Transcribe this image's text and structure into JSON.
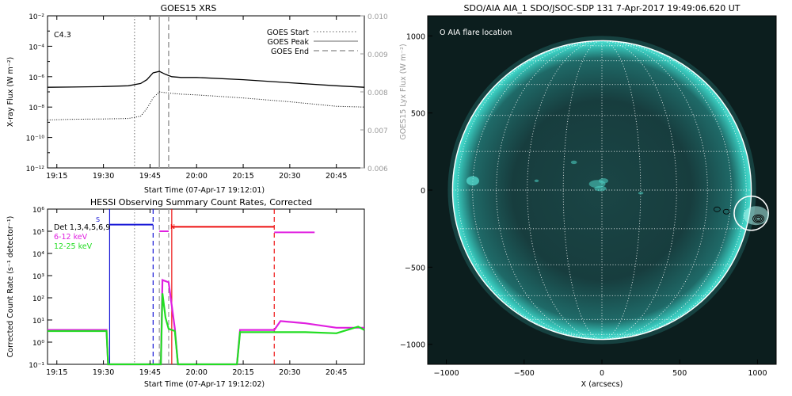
{
  "colors": {
    "axis": "#000000",
    "right_axis": "#9a9a9a",
    "goes_marker": "#9a9a9a",
    "hessi_blue": "#1515d6",
    "hessi_red": "#ee1010",
    "hessi_magenta": "#e020e0",
    "hessi_green": "#22dd22",
    "sun_teal": "#28b8ad",
    "sun_dark": "#0c1e1e"
  },
  "chart_data": [
    {
      "type": "line",
      "title": "GOES15 XRS",
      "xlabel": "Start Time (07-Apr-17 19:12:01)",
      "ylabel": "X-ray Flux (W m⁻²)",
      "ylabel_right": "GOES15 Lyx Flux (W m⁻²)",
      "x_ticks": [
        "19:15",
        "19:30",
        "19:45",
        "20:00",
        "20:15",
        "20:30",
        "20:45"
      ],
      "y_ticks": [
        "10⁻¹²",
        "10⁻¹⁰",
        "10⁻⁸",
        "10⁻⁶",
        "10⁻⁴",
        "10⁻²"
      ],
      "y_ticks_right": [
        "0.006",
        "0.007",
        "0.008",
        "0.009",
        "0.010"
      ],
      "ylim_log10": [
        -12,
        -2
      ],
      "xlim": [
        "19:12",
        "20:54"
      ],
      "annotation": "C4.3",
      "legend_position": "top-right",
      "legend": [
        {
          "label": "GOES Start",
          "style": "dotted"
        },
        {
          "label": "GOES Peak",
          "style": "solid"
        },
        {
          "label": "GOES End",
          "style": "dashed"
        }
      ],
      "markers": {
        "start": "19:40",
        "peak": "19:48",
        "end": "19:51"
      },
      "series": [
        {
          "name": "long-channel",
          "style": "solid",
          "x": [
            "19:12",
            "19:20",
            "19:30",
            "19:38",
            "19:42",
            "19:44",
            "19:46",
            "19:48",
            "19:50",
            "19:52",
            "19:55",
            "20:00",
            "20:15",
            "20:30",
            "20:45",
            "20:54"
          ],
          "log10_y": [
            -6.7,
            -6.68,
            -6.65,
            -6.6,
            -6.45,
            -6.2,
            -5.75,
            -5.65,
            -5.85,
            -6.0,
            -6.05,
            -6.05,
            -6.2,
            -6.4,
            -6.6,
            -6.7
          ]
        },
        {
          "name": "short-channel",
          "style": "dotted",
          "x": [
            "19:12",
            "19:20",
            "19:30",
            "19:38",
            "19:42",
            "19:44",
            "19:46",
            "19:48",
            "19:50",
            "19:52",
            "19:55",
            "20:00",
            "20:15",
            "20:30",
            "20:45",
            "20:54"
          ],
          "log10_y": [
            -8.85,
            -8.8,
            -8.78,
            -8.75,
            -8.6,
            -8.1,
            -7.4,
            -7.0,
            -7.05,
            -7.1,
            -7.15,
            -7.2,
            -7.4,
            -7.65,
            -7.95,
            -8.0
          ]
        }
      ]
    },
    {
      "type": "line",
      "title": "HESSI Observing Summary Count Rates, Corrected",
      "xlabel": "Start Time (07-Apr-17 19:12:02)",
      "ylabel": "Corrected Count Rate (s⁻¹ detector⁻¹)",
      "x_ticks": [
        "19:15",
        "19:30",
        "19:45",
        "20:00",
        "20:15",
        "20:30",
        "20:45"
      ],
      "y_ticks": [
        "10⁻¹",
        "10⁰",
        "10¹",
        "10²",
        "10³",
        "10⁴",
        "10⁵",
        "10⁶"
      ],
      "ylim_log10": [
        -1,
        6
      ],
      "xlim": [
        "19:12",
        "20:54"
      ],
      "legend_title": "Det 1,3,4,5,6,9",
      "legend": [
        {
          "label": "6-12 keV",
          "color": "#e020e0"
        },
        {
          "label": "12-25 keV",
          "color": "#22dd22"
        }
      ],
      "labels": [
        "S",
        "N"
      ],
      "vlines": [
        {
          "t": "19:32",
          "color": "#1515d6",
          "style": "solid"
        },
        {
          "t": "19:40",
          "color": "#9a9a9a",
          "style": "dotted"
        },
        {
          "t": "19:46",
          "color": "#1515d6",
          "style": "dashed"
        },
        {
          "t": "19:48",
          "color": "#9a9a9a",
          "style": "dashed"
        },
        {
          "t": "19:51",
          "color": "#9a9a9a",
          "style": "dashed"
        },
        {
          "t": "19:52",
          "color": "#ee1010",
          "style": "solid"
        },
        {
          "t": "20:25",
          "color": "#ee1010",
          "style": "dashed"
        }
      ],
      "segments": [
        {
          "name": "blue-S",
          "color": "#1515d6",
          "from": "19:32",
          "to": "19:46",
          "log10_y": 5.3
        },
        {
          "name": "red-N",
          "color": "#ee1010",
          "from": "19:52",
          "to": "20:25",
          "log10_y": 5.2
        },
        {
          "name": "magenta-top",
          "color": "#e020e0",
          "from": "20:25",
          "to": "20:38",
          "log10_y": 4.95
        },
        {
          "name": "magenta-mid",
          "color": "#e020e0",
          "from": "19:48",
          "to": "19:51",
          "log10_y": 5.0
        }
      ],
      "series": [
        {
          "name": "6-12 keV",
          "color": "#e020e0",
          "x": [
            "19:12",
            "19:31",
            "19:31.5",
            "19:46",
            "19:48.5",
            "19:49",
            "19:51",
            "19:53",
            "19:54",
            "20:13",
            "20:14",
            "20:25",
            "20:27",
            "20:35",
            "20:45",
            "20:54"
          ],
          "log10_y": [
            0.55,
            0.55,
            -1,
            -1,
            -1,
            2.8,
            2.7,
            0.6,
            -1,
            -1,
            0.55,
            0.55,
            0.95,
            0.85,
            0.65,
            0.65
          ]
        },
        {
          "name": "12-25 keV",
          "color": "#22dd22",
          "x": [
            "19:12",
            "19:31",
            "19:31.5",
            "19:46",
            "19:48.5",
            "19:49",
            "19:50",
            "19:51",
            "19:53",
            "19:54",
            "20:13",
            "20:14",
            "20:25",
            "20:35",
            "20:45",
            "20:52",
            "20:54"
          ],
          "log10_y": [
            0.5,
            0.5,
            -1,
            -1,
            -1,
            2.2,
            1.1,
            0.6,
            0.5,
            -1,
            -1,
            0.45,
            0.45,
            0.45,
            0.4,
            0.7,
            0.55
          ]
        }
      ]
    },
    {
      "type": "other",
      "title": "SDO/AIA AIA_1 SDO/JSOC-SDP 131  7-Apr-2017 19:49:06.620 UT",
      "xlabel": "X (arcsecs)",
      "ylabel": "",
      "x_ticks": [
        "−1000",
        "−500",
        "0",
        "500",
        "1000"
      ],
      "y_ticks": [
        "−1000",
        "−500",
        "0",
        "500",
        "1000"
      ],
      "xlim": [
        -1120,
        1120
      ],
      "ylim": [
        -1130,
        1130
      ],
      "legend": "O AIA flare location",
      "solar_radius_arcsec": 960,
      "flare_location": [
        960,
        -150
      ],
      "flare_circle_radius_arcsec": 110
    }
  ]
}
